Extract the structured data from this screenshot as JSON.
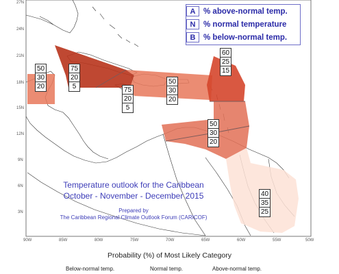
{
  "legend": {
    "above_key": "A",
    "above_label": "% above-normal temp.",
    "normal_key": "N",
    "normal_label": "% normal temperature",
    "below_key": "B",
    "below_label": "% below-normal temp."
  },
  "latitudes": [
    "27N",
    "24N",
    "21N",
    "18N",
    "15N",
    "12N",
    "9N",
    "6N",
    "3N"
  ],
  "longitudes": [
    "90W",
    "85W",
    "80W",
    "75W",
    "70W",
    "65W",
    "60W",
    "55W",
    "50W"
  ],
  "regions": [
    {
      "id": "belize",
      "above": "50",
      "normal": "30",
      "below": "20",
      "color": "#e8785a"
    },
    {
      "id": "jamaica-cayman",
      "above": "75",
      "normal": "20",
      "below": "5",
      "color": "#b8341c"
    },
    {
      "id": "haiti-cuba-east",
      "above": "75",
      "normal": "20",
      "below": "5",
      "color": "#b8341c"
    },
    {
      "id": "greater-antilles",
      "above": "50",
      "normal": "30",
      "below": "20",
      "color": "#e8785a"
    },
    {
      "id": "lesser-antilles",
      "above": "60",
      "normal": "25",
      "below": "15",
      "color": "#d5462c"
    },
    {
      "id": "southern-caribbean",
      "above": "50",
      "normal": "30",
      "below": "20",
      "color": "#e27056"
    },
    {
      "id": "guianas",
      "above": "40",
      "normal": "35",
      "below": "25",
      "color": "#fde2d6"
    }
  ],
  "title_line1": "Temperature outlook for the Caribbean",
  "title_line2": "October - November - December 2015",
  "prepared_by": "Prepared by",
  "forum": "The Caribbean Regional Climate Outlook Forum (CARICOF)",
  "caption": "Probability (%) of Most Likely Category",
  "category_labels": {
    "below": "Below-normal temp.",
    "normal": "Normal temp.",
    "above": "Above-normal temp."
  }
}
